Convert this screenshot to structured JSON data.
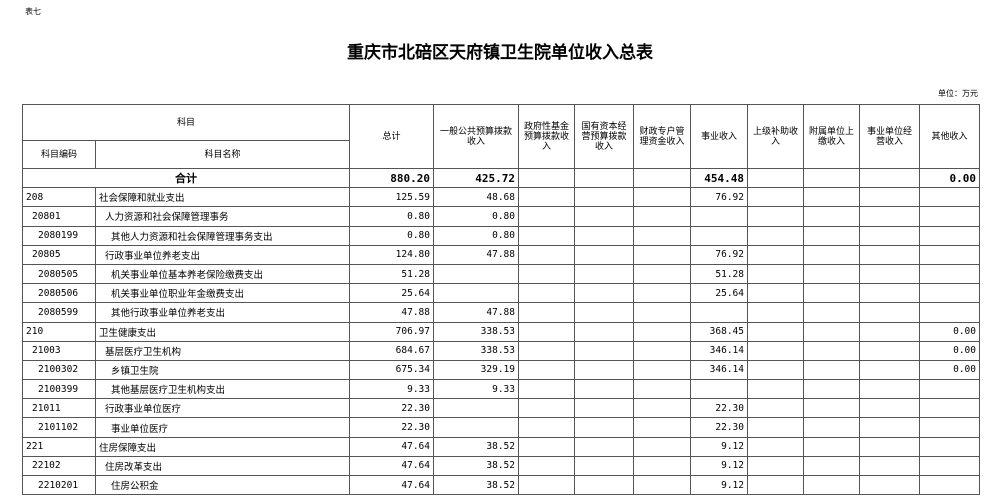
{
  "tag": "表七",
  "title": "重庆市北碚区天府镇卫生院单位收入总表",
  "unit": "单位：万元",
  "headers": {
    "subject": "科目",
    "code": "科目编码",
    "name": "科目名称",
    "cols": [
      "总计",
      "一般公共预算拨款收入",
      "政府性基金预算拨款收入",
      "国有资本经营预算拨款收入",
      "财政专户管理资金收入",
      "事业收入",
      "上级补助收入",
      "附属单位上缴收入",
      "事业单位经营收入",
      "其他收入"
    ]
  },
  "total": {
    "label": "合计",
    "values": [
      "880.20",
      "425.72",
      "",
      "",
      "",
      "454.48",
      "",
      "",
      "",
      "0.00"
    ]
  },
  "rows": [
    {
      "code": "208",
      "name": "社会保障和就业支出",
      "level": 1,
      "values": [
        "125.59",
        "48.68",
        "",
        "",
        "",
        "76.92",
        "",
        "",
        "",
        ""
      ]
    },
    {
      "code": "20801",
      "name": "人力资源和社会保障管理事务",
      "level": 2,
      "values": [
        "0.80",
        "0.80",
        "",
        "",
        "",
        "",
        "",
        "",
        "",
        ""
      ]
    },
    {
      "code": "2080199",
      "name": "其他人力资源和社会保障管理事务支出",
      "level": 3,
      "values": [
        "0.80",
        "0.80",
        "",
        "",
        "",
        "",
        "",
        "",
        "",
        ""
      ]
    },
    {
      "code": "20805",
      "name": "行政事业单位养老支出",
      "level": 2,
      "values": [
        "124.80",
        "47.88",
        "",
        "",
        "",
        "76.92",
        "",
        "",
        "",
        ""
      ]
    },
    {
      "code": "2080505",
      "name": "机关事业单位基本养老保险缴费支出",
      "level": 3,
      "values": [
        "51.28",
        "",
        "",
        "",
        "",
        "51.28",
        "",
        "",
        "",
        ""
      ]
    },
    {
      "code": "2080506",
      "name": "机关事业单位职业年金缴费支出",
      "level": 3,
      "values": [
        "25.64",
        "",
        "",
        "",
        "",
        "25.64",
        "",
        "",
        "",
        ""
      ]
    },
    {
      "code": "2080599",
      "name": "其他行政事业单位养老支出",
      "level": 3,
      "values": [
        "47.88",
        "47.88",
        "",
        "",
        "",
        "",
        "",
        "",
        "",
        ""
      ]
    },
    {
      "code": "210",
      "name": "卫生健康支出",
      "level": 1,
      "values": [
        "706.97",
        "338.53",
        "",
        "",
        "",
        "368.45",
        "",
        "",
        "",
        "0.00"
      ]
    },
    {
      "code": "21003",
      "name": "基层医疗卫生机构",
      "level": 2,
      "values": [
        "684.67",
        "338.53",
        "",
        "",
        "",
        "346.14",
        "",
        "",
        "",
        "0.00"
      ]
    },
    {
      "code": "2100302",
      "name": "乡镇卫生院",
      "level": 3,
      "values": [
        "675.34",
        "329.19",
        "",
        "",
        "",
        "346.14",
        "",
        "",
        "",
        "0.00"
      ]
    },
    {
      "code": "2100399",
      "name": "其他基层医疗卫生机构支出",
      "level": 3,
      "values": [
        "9.33",
        "9.33",
        "",
        "",
        "",
        "",
        "",
        "",
        "",
        ""
      ]
    },
    {
      "code": "21011",
      "name": "行政事业单位医疗",
      "level": 2,
      "values": [
        "22.30",
        "",
        "",
        "",
        "",
        "22.30",
        "",
        "",
        "",
        ""
      ]
    },
    {
      "code": "2101102",
      "name": "事业单位医疗",
      "level": 3,
      "values": [
        "22.30",
        "",
        "",
        "",
        "",
        "22.30",
        "",
        "",
        "",
        ""
      ]
    },
    {
      "code": "221",
      "name": "住房保障支出",
      "level": 1,
      "values": [
        "47.64",
        "38.52",
        "",
        "",
        "",
        "9.12",
        "",
        "",
        "",
        ""
      ]
    },
    {
      "code": "22102",
      "name": "住房改革支出",
      "level": 2,
      "values": [
        "47.64",
        "38.52",
        "",
        "",
        "",
        "9.12",
        "",
        "",
        "",
        ""
      ]
    },
    {
      "code": "2210201",
      "name": "住房公积金",
      "level": 3,
      "values": [
        "47.64",
        "38.52",
        "",
        "",
        "",
        "9.12",
        "",
        "",
        "",
        ""
      ]
    }
  ]
}
